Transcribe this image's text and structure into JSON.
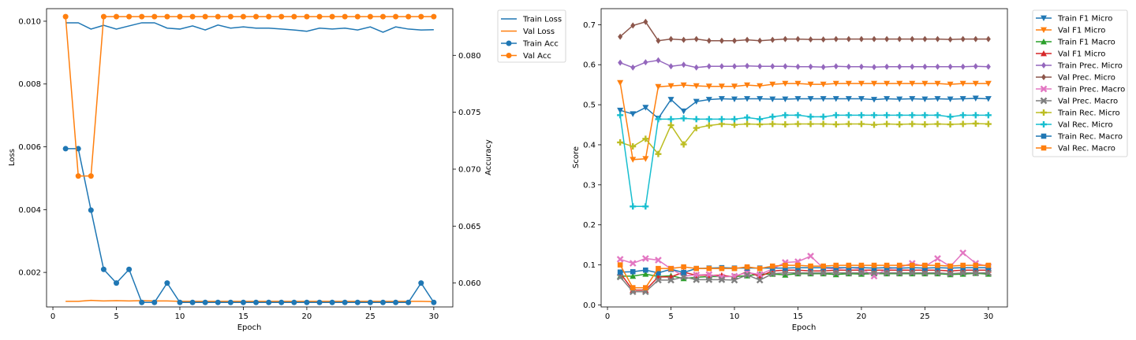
{
  "chart_data": [
    {
      "type": "line",
      "title": "",
      "xlabel": "Epoch",
      "ylabel": "Loss",
      "y2label": "Accuracy",
      "xlim": [
        -0.5,
        31.5
      ],
      "ylim": [
        0.0009,
        0.0104
      ],
      "y2lim": [
        0.0579,
        0.0841
      ],
      "xticks": [
        0,
        5,
        10,
        15,
        20,
        25,
        30
      ],
      "yticks": [
        "0.002",
        "0.004",
        "0.006",
        "0.008",
        "0.010"
      ],
      "y2ticks": [
        "0.060",
        "0.065",
        "0.070",
        "0.075",
        "0.080"
      ],
      "legend_position": "outside-right",
      "x": [
        1,
        2,
        3,
        4,
        5,
        6,
        7,
        8,
        9,
        10,
        11,
        12,
        13,
        14,
        15,
        16,
        17,
        18,
        19,
        20,
        21,
        22,
        23,
        24,
        25,
        26,
        27,
        28,
        29,
        30
      ],
      "series": [
        {
          "name": "Train Loss",
          "axis": "left",
          "color": "#1f77b4",
          "marker": "none",
          "values": [
            0.00995,
            0.00995,
            0.00975,
            0.00987,
            0.00975,
            0.00985,
            0.00995,
            0.00995,
            0.00978,
            0.00975,
            0.00985,
            0.00972,
            0.00988,
            0.00978,
            0.00982,
            0.00978,
            0.00978,
            0.00975,
            0.00972,
            0.00968,
            0.00978,
            0.00975,
            0.00978,
            0.00972,
            0.00982,
            0.00965,
            0.00982,
            0.00975,
            0.00972,
            0.00973
          ]
        },
        {
          "name": "Val Loss",
          "axis": "left",
          "color": "#ff7f0e",
          "marker": "none",
          "values": [
            0.00108,
            0.00108,
            0.00111,
            0.00109,
            0.0011,
            0.00109,
            0.0011,
            0.00109,
            0.00109,
            0.00108,
            0.00108,
            0.00108,
            0.00108,
            0.00108,
            0.00108,
            0.00108,
            0.00108,
            0.00108,
            0.00108,
            0.00108,
            0.00108,
            0.00108,
            0.00108,
            0.00108,
            0.00108,
            0.00108,
            0.00108,
            0.00108,
            0.00108,
            0.00107
          ]
        },
        {
          "name": "Train Acc",
          "axis": "right",
          "color": "#1f77b4",
          "marker": "circle",
          "values": [
            0.0718,
            0.0718,
            0.0664,
            0.0612,
            0.06,
            0.0612,
            0.0583,
            0.0583,
            0.06,
            0.0583,
            0.0583,
            0.0583,
            0.0583,
            0.0583,
            0.0583,
            0.0583,
            0.0583,
            0.0583,
            0.0583,
            0.0583,
            0.0583,
            0.0583,
            0.0583,
            0.0583,
            0.0583,
            0.0583,
            0.0583,
            0.0583,
            0.06,
            0.0583
          ]
        },
        {
          "name": "Val Acc",
          "axis": "right",
          "color": "#ff7f0e",
          "marker": "circle",
          "values": [
            0.0834,
            0.0694,
            0.0694,
            0.0834,
            0.0834,
            0.0834,
            0.0834,
            0.0834,
            0.0834,
            0.0834,
            0.0834,
            0.0834,
            0.0834,
            0.0834,
            0.0834,
            0.0834,
            0.0834,
            0.0834,
            0.0834,
            0.0834,
            0.0834,
            0.0834,
            0.0834,
            0.0834,
            0.0834,
            0.0834,
            0.0834,
            0.0834,
            0.0834,
            0.0834
          ]
        }
      ]
    },
    {
      "type": "line",
      "title": "",
      "xlabel": "Epoch",
      "ylabel": "Score",
      "xlim": [
        -0.5,
        31.5
      ],
      "ylim": [
        -0.005,
        0.74
      ],
      "xticks": [
        0,
        5,
        10,
        15,
        20,
        25,
        30
      ],
      "yticks": [
        "0.0",
        "0.1",
        "0.2",
        "0.3",
        "0.4",
        "0.5",
        "0.6",
        "0.7"
      ],
      "legend_position": "outside-right",
      "x": [
        1,
        2,
        3,
        4,
        5,
        6,
        7,
        8,
        9,
        10,
        11,
        12,
        13,
        14,
        15,
        16,
        17,
        18,
        19,
        20,
        21,
        22,
        23,
        24,
        25,
        26,
        27,
        28,
        29,
        30
      ],
      "series": [
        {
          "name": "Train F1 Micro",
          "color": "#1f77b4",
          "marker": "tri-down",
          "values": [
            0.486,
            0.477,
            0.493,
            0.466,
            0.513,
            0.484,
            0.508,
            0.513,
            0.515,
            0.514,
            0.515,
            0.515,
            0.514,
            0.514,
            0.515,
            0.515,
            0.515,
            0.515,
            0.515,
            0.515,
            0.513,
            0.515,
            0.514,
            0.515,
            0.514,
            0.515,
            0.514,
            0.515,
            0.516,
            0.515
          ]
        },
        {
          "name": "Val F1 Micro",
          "color": "#ff7f0e",
          "marker": "tri-down",
          "values": [
            0.555,
            0.363,
            0.365,
            0.545,
            0.547,
            0.549,
            0.547,
            0.546,
            0.546,
            0.546,
            0.549,
            0.547,
            0.551,
            0.553,
            0.553,
            0.551,
            0.551,
            0.553,
            0.553,
            0.553,
            0.553,
            0.553,
            0.553,
            0.553,
            0.553,
            0.553,
            0.551,
            0.553,
            0.553,
            0.553
          ]
        },
        {
          "name": "Train F1 Macro",
          "color": "#2ca02c",
          "marker": "tri-up",
          "values": [
            0.072,
            0.072,
            0.077,
            0.071,
            0.073,
            0.066,
            0.069,
            0.071,
            0.071,
            0.071,
            0.073,
            0.077,
            0.077,
            0.075,
            0.078,
            0.078,
            0.078,
            0.076,
            0.078,
            0.077,
            0.078,
            0.078,
            0.078,
            0.078,
            0.078,
            0.078,
            0.076,
            0.077,
            0.079,
            0.077
          ]
        },
        {
          "name": "Val F1 Micro",
          "color": "#d62728",
          "marker": "tri-up",
          "values": [
            0.08,
            0.037,
            0.037,
            0.07,
            0.07,
            0.082,
            0.074,
            0.074,
            0.074,
            0.07,
            0.083,
            0.071,
            0.085,
            0.087,
            0.087,
            0.085,
            0.085,
            0.087,
            0.087,
            0.087,
            0.087,
            0.087,
            0.087,
            0.087,
            0.087,
            0.087,
            0.085,
            0.087,
            0.087,
            0.087
          ]
        },
        {
          "name": "Train Prec. Micro",
          "color": "#9467bd",
          "marker": "diamond",
          "values": [
            0.605,
            0.593,
            0.606,
            0.611,
            0.596,
            0.6,
            0.593,
            0.596,
            0.596,
            0.596,
            0.597,
            0.596,
            0.596,
            0.596,
            0.595,
            0.595,
            0.594,
            0.596,
            0.595,
            0.595,
            0.594,
            0.595,
            0.595,
            0.595,
            0.595,
            0.595,
            0.595,
            0.595,
            0.596,
            0.595
          ]
        },
        {
          "name": "Val Prec. Micro",
          "color": "#8c564b",
          "marker": "diamond",
          "values": [
            0.67,
            0.698,
            0.707,
            0.66,
            0.664,
            0.662,
            0.664,
            0.66,
            0.66,
            0.66,
            0.662,
            0.66,
            0.662,
            0.664,
            0.664,
            0.663,
            0.663,
            0.664,
            0.664,
            0.664,
            0.664,
            0.664,
            0.664,
            0.664,
            0.664,
            0.664,
            0.663,
            0.664,
            0.664,
            0.664
          ]
        },
        {
          "name": "Train Prec. Macro",
          "color": "#e377c2",
          "marker": "x",
          "values": [
            0.114,
            0.104,
            0.116,
            0.112,
            0.09,
            0.072,
            0.075,
            0.076,
            0.07,
            0.072,
            0.081,
            0.076,
            0.09,
            0.106,
            0.108,
            0.122,
            0.092,
            0.09,
            0.094,
            0.09,
            0.072,
            0.09,
            0.094,
            0.104,
            0.096,
            0.116,
            0.096,
            0.13,
            0.104,
            0.096
          ]
        },
        {
          "name": "Val Prec. Macro",
          "color": "#7f7f7f",
          "marker": "x",
          "values": [
            0.07,
            0.033,
            0.033,
            0.062,
            0.062,
            0.07,
            0.063,
            0.063,
            0.063,
            0.062,
            0.075,
            0.062,
            0.078,
            0.08,
            0.08,
            0.08,
            0.08,
            0.08,
            0.08,
            0.08,
            0.08,
            0.08,
            0.08,
            0.08,
            0.08,
            0.08,
            0.078,
            0.08,
            0.08,
            0.08
          ]
        },
        {
          "name": "Train Rec. Micro",
          "color": "#bcbd22",
          "marker": "plus",
          "values": [
            0.406,
            0.396,
            0.415,
            0.377,
            0.449,
            0.401,
            0.442,
            0.448,
            0.452,
            0.45,
            0.452,
            0.451,
            0.452,
            0.451,
            0.452,
            0.452,
            0.452,
            0.451,
            0.452,
            0.452,
            0.45,
            0.452,
            0.451,
            0.452,
            0.451,
            0.452,
            0.451,
            0.452,
            0.453,
            0.452
          ]
        },
        {
          "name": "Val Rec. Micro",
          "color": "#17becf",
          "marker": "plus",
          "values": [
            0.474,
            0.246,
            0.246,
            0.464,
            0.464,
            0.466,
            0.464,
            0.464,
            0.464,
            0.464,
            0.468,
            0.464,
            0.47,
            0.474,
            0.474,
            0.47,
            0.47,
            0.474,
            0.474,
            0.474,
            0.474,
            0.474,
            0.474,
            0.474,
            0.474,
            0.474,
            0.47,
            0.474,
            0.474,
            0.474
          ]
        },
        {
          "name": "Train Rec. Macro",
          "color": "#1f77b4",
          "marker": "square",
          "values": [
            0.082,
            0.083,
            0.087,
            0.08,
            0.089,
            0.081,
            0.091,
            0.092,
            0.093,
            0.092,
            0.092,
            0.092,
            0.092,
            0.092,
            0.093,
            0.093,
            0.093,
            0.093,
            0.093,
            0.093,
            0.092,
            0.093,
            0.092,
            0.093,
            0.092,
            0.093,
            0.092,
            0.093,
            0.093,
            0.093
          ]
        },
        {
          "name": "Val Rec. Macro",
          "color": "#ff7f0e",
          "marker": "square",
          "values": [
            0.1,
            0.043,
            0.043,
            0.091,
            0.091,
            0.095,
            0.091,
            0.091,
            0.091,
            0.091,
            0.095,
            0.091,
            0.097,
            0.099,
            0.099,
            0.097,
            0.097,
            0.099,
            0.099,
            0.099,
            0.099,
            0.099,
            0.099,
            0.099,
            0.099,
            0.099,
            0.097,
            0.099,
            0.099,
            0.099
          ]
        }
      ]
    }
  ]
}
